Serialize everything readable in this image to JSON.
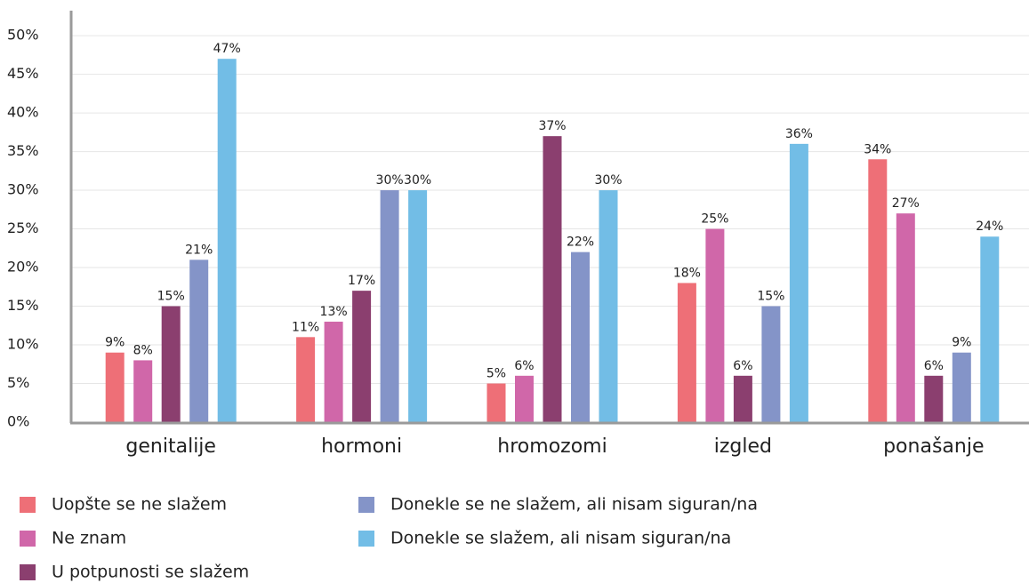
{
  "chart_data": {
    "type": "bar",
    "categories": [
      "genitalije",
      "hormoni",
      "hromozomi",
      "izgled",
      "ponašanje"
    ],
    "series": [
      {
        "name": "Uopšte se ne slažem",
        "color": "#ee6f77",
        "values": [
          9,
          11,
          5,
          18,
          34
        ],
        "value_labels": [
          "9%",
          "11%",
          "5%",
          "18%",
          "34%"
        ]
      },
      {
        "name": "Ne znam",
        "color": "#d067a9",
        "values": [
          8,
          13,
          6,
          25,
          27
        ],
        "value_labels": [
          "8%",
          "13%",
          "6%",
          "25%",
          "27%"
        ]
      },
      {
        "name": "U potpunosti se slažem",
        "color": "#8b3f6f",
        "values": [
          15,
          17,
          37,
          6,
          6
        ],
        "value_labels": [
          "15%",
          "17%",
          "37%",
          "6%",
          "6%"
        ]
      },
      {
        "name": "Donekle se ne slažem, ali nisam siguran/na",
        "color": "#8494c8",
        "values": [
          21,
          30,
          22,
          15,
          9
        ],
        "value_labels": [
          "21%",
          "30%",
          "22%",
          "15%",
          "9%"
        ]
      },
      {
        "name": "Donekle se slažem, ali nisam siguran/na",
        "color": "#72bde6",
        "values": [
          47,
          30,
          30,
          36,
          24
        ],
        "value_labels": [
          "47%",
          "30%",
          "30%",
          "36%",
          "24%"
        ]
      }
    ],
    "ylim": [
      0,
      53
    ],
    "yticks": [
      {
        "value": 0,
        "label": "0%"
      },
      {
        "value": 5,
        "label": "5%"
      },
      {
        "value": 10,
        "label": "10%"
      },
      {
        "value": 15,
        "label": "15%"
      },
      {
        "value": 20,
        "label": "20%"
      },
      {
        "value": 25,
        "label": "25%"
      },
      {
        "value": 30,
        "label": "30%"
      },
      {
        "value": 35,
        "label": "35%"
      },
      {
        "value": 40,
        "label": "40%"
      },
      {
        "value": 45,
        "label": "45%"
      },
      {
        "value": 50,
        "label": "50%"
      }
    ],
    "grid": true
  }
}
